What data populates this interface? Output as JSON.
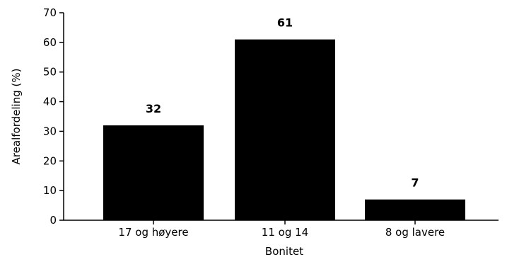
{
  "chart_data": {
    "type": "bar",
    "categories": [
      "17 og høyere",
      "11 og 14",
      "8 og lavere"
    ],
    "values": [
      32,
      61,
      7
    ],
    "value_labels": [
      "32",
      "61",
      "7"
    ],
    "xlabel": "Bonitet",
    "ylabel": "Arealfordeling (%)",
    "ylim": [
      0,
      70
    ],
    "yticks": [
      0,
      10,
      20,
      30,
      40,
      50,
      60,
      70
    ],
    "ytick_labels": [
      "0",
      "10",
      "20",
      "30",
      "40",
      "50",
      "60",
      "70"
    ],
    "grid": false,
    "bar_color": "#000000"
  }
}
